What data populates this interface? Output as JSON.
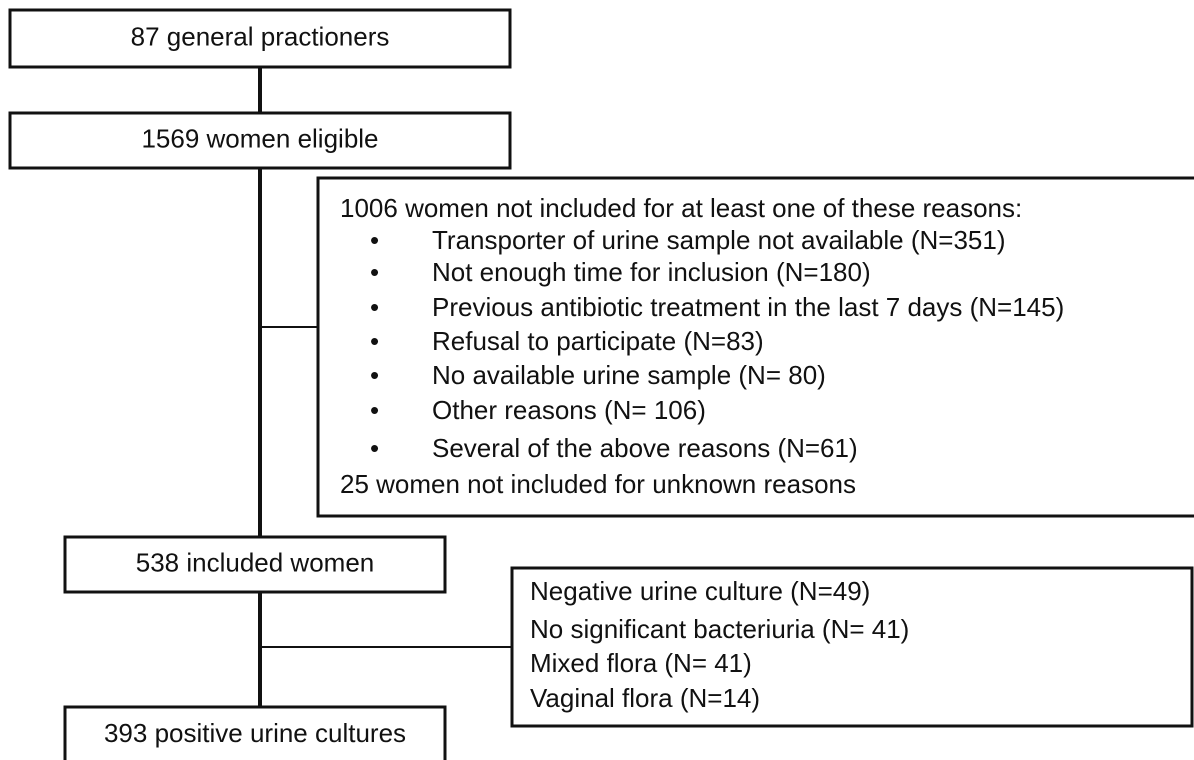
{
  "nodes": [
    {
      "label": "87 general practioners"
    },
    {
      "label": "1569 women eligible"
    },
    {
      "label": "538 included women"
    },
    {
      "label": "393 positive urine cultures"
    }
  ],
  "exclusions": [
    {
      "header": "1006 women not included for at least one of these reasons:",
      "items": [
        "Transporter of urine sample not available (N=351)",
        "Not enough time for inclusion (N=180)",
        "Previous antibiotic treatment in the last 7 days (N=145)",
        "Refusal to participate (N=83)",
        "No available urine sample (N= 80)",
        "Other reasons (N= 106)",
        "Several of the above reasons (N=61)"
      ],
      "footer": "25 women not included for unknown reasons"
    },
    {
      "items": [
        "Negative urine culture (N=49)",
        "No significant bacteriuria (N= 41)",
        "Mixed flora (N= 41)",
        "Vaginal flora (N=14)"
      ]
    }
  ]
}
